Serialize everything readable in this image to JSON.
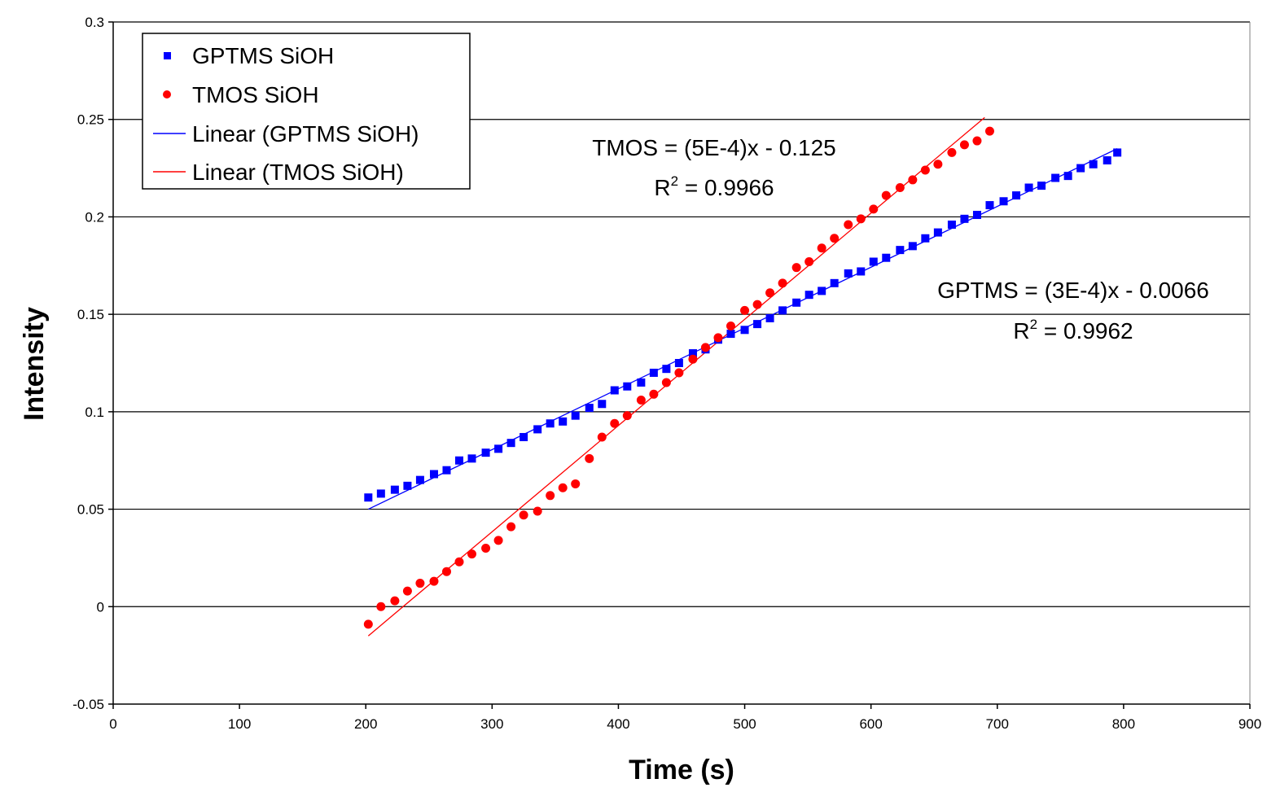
{
  "chart_data": {
    "type": "scatter",
    "title": "",
    "xlabel": "Time (s)",
    "ylabel": "Intensity",
    "xlim": [
      0,
      900
    ],
    "ylim": [
      -0.05,
      0.3
    ],
    "x_ticks": [
      0,
      100,
      200,
      300,
      400,
      500,
      600,
      700,
      800,
      900
    ],
    "y_ticks": [
      -0.05,
      0,
      0.05,
      0.1,
      0.15,
      0.2,
      0.25,
      0.3
    ],
    "y_tick_labels": [
      "-0.05",
      "0",
      "0.05",
      "0.1",
      "0.15",
      "0.2",
      "0.25",
      "0.3"
    ],
    "grid": "horizontal major gridlines",
    "legend_position": "top-left",
    "series": [
      {
        "name": "GPTMS SiOH",
        "marker": "square",
        "color": "#0000FF",
        "x": [
          202,
          212,
          223,
          233,
          243,
          254,
          264,
          274,
          284,
          295,
          305,
          315,
          325,
          336,
          346,
          356,
          366,
          377,
          387,
          397,
          407,
          418,
          428,
          438,
          448,
          459,
          469,
          479,
          489,
          500,
          510,
          520,
          530,
          541,
          551,
          561,
          571,
          582,
          592,
          602,
          612,
          623,
          633,
          643,
          653,
          664,
          674,
          684,
          694,
          705,
          715,
          725,
          735,
          746,
          756,
          766,
          776,
          787,
          795
        ],
        "y": [
          0.056,
          0.058,
          0.06,
          0.062,
          0.065,
          0.068,
          0.07,
          0.075,
          0.076,
          0.079,
          0.081,
          0.084,
          0.087,
          0.091,
          0.094,
          0.095,
          0.098,
          0.102,
          0.104,
          0.111,
          0.113,
          0.115,
          0.12,
          0.122,
          0.125,
          0.13,
          0.132,
          0.137,
          0.14,
          0.142,
          0.145,
          0.148,
          0.152,
          0.156,
          0.16,
          0.162,
          0.166,
          0.171,
          0.172,
          0.177,
          0.179,
          0.183,
          0.185,
          0.189,
          0.192,
          0.196,
          0.199,
          0.201,
          0.206,
          0.208,
          0.211,
          0.215,
          0.216,
          0.22,
          0.221,
          0.225,
          0.227,
          0.229,
          0.233
        ]
      },
      {
        "name": "TMOS SiOH",
        "marker": "circle",
        "color": "#FF0000",
        "x": [
          202,
          212,
          223,
          233,
          243,
          254,
          264,
          274,
          284,
          295,
          305,
          315,
          325,
          336,
          346,
          356,
          366,
          377,
          387,
          397,
          407,
          418,
          428,
          438,
          448,
          459,
          469,
          479,
          489,
          500,
          510,
          520,
          530,
          541,
          551,
          561,
          571,
          582,
          592,
          602,
          612,
          623,
          633,
          643,
          653,
          664,
          674,
          684,
          694
        ],
        "y": [
          -0.009,
          0.0,
          0.003,
          0.008,
          0.012,
          0.013,
          0.018,
          0.023,
          0.027,
          0.03,
          0.034,
          0.041,
          0.047,
          0.049,
          0.057,
          0.061,
          0.063,
          0.076,
          0.087,
          0.094,
          0.098,
          0.106,
          0.109,
          0.115,
          0.12,
          0.127,
          0.133,
          0.138,
          0.144,
          0.152,
          0.155,
          0.161,
          0.166,
          0.174,
          0.177,
          0.184,
          0.189,
          0.196,
          0.199,
          0.204,
          0.211,
          0.215,
          0.219,
          0.224,
          0.227,
          0.233,
          0.237,
          0.239,
          0.244
        ]
      },
      {
        "name": "Linear (GPTMS SiOH)",
        "type": "line",
        "color": "#0000FF",
        "x": [
          202,
          795
        ],
        "y": [
          0.05,
          0.235
        ]
      },
      {
        "name": "Linear (TMOS SiOH)",
        "type": "line",
        "color": "#FF0000",
        "x": [
          202,
          690
        ],
        "y": [
          -0.015,
          0.251
        ]
      }
    ],
    "annotations": [
      {
        "name": "tmos-equation",
        "equation": "TMOS = (5E-4)x - 0.125",
        "r2_label": "R",
        "r2_sup": "2",
        "r2_value": " = 0.9966"
      },
      {
        "name": "gptms-equation",
        "equation": "GPTMS = (3E-4)x - 0.0066",
        "r2_label": "R",
        "r2_sup": "2",
        "r2_value": " = 0.9962"
      }
    ]
  }
}
